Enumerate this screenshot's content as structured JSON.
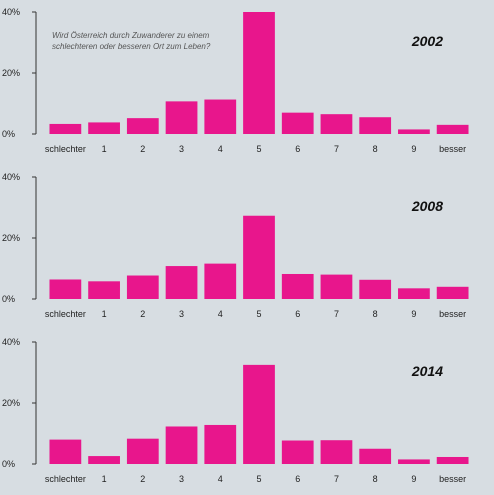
{
  "colors": {
    "bar": "#e8168c",
    "background": "#d7dde2",
    "axis": "#333333"
  },
  "chart_data": [
    {
      "type": "bar",
      "title": "2002",
      "annotation": [
        "Wird Österreich durch Zuwanderer zu einem",
        "schlechteren oder besseren Ort zum Leben?"
      ],
      "categories": [
        "schlechter",
        "1",
        "2",
        "3",
        "4",
        "5",
        "6",
        "7",
        "8",
        "9",
        "besser"
      ],
      "values": [
        3.3,
        3.8,
        5.2,
        10.7,
        11.3,
        40.0,
        7.0,
        6.5,
        5.5,
        1.5,
        3.0
      ],
      "yticks": [
        "0%",
        "20%",
        "40%"
      ],
      "ylim": [
        0,
        40
      ],
      "grid": false
    },
    {
      "type": "bar",
      "title": "2008",
      "categories": [
        "schlechter",
        "1",
        "2",
        "3",
        "4",
        "5",
        "6",
        "7",
        "8",
        "9",
        "besser"
      ],
      "values": [
        6.4,
        5.8,
        7.7,
        10.8,
        11.6,
        27.3,
        8.2,
        8.0,
        6.3,
        3.5,
        4.0
      ],
      "yticks": [
        "0%",
        "20%",
        "40%"
      ],
      "ylim": [
        0,
        40
      ],
      "grid": false
    },
    {
      "type": "bar",
      "title": "2014",
      "categories": [
        "schlechter",
        "1",
        "2",
        "3",
        "4",
        "5",
        "6",
        "7",
        "8",
        "9",
        "besser"
      ],
      "values": [
        8.0,
        2.6,
        8.3,
        12.3,
        12.8,
        32.5,
        7.7,
        7.8,
        5.0,
        1.5,
        2.3
      ],
      "yticks": [
        "0%",
        "20%",
        "40%"
      ],
      "ylim": [
        0,
        40
      ],
      "grid": false
    }
  ]
}
